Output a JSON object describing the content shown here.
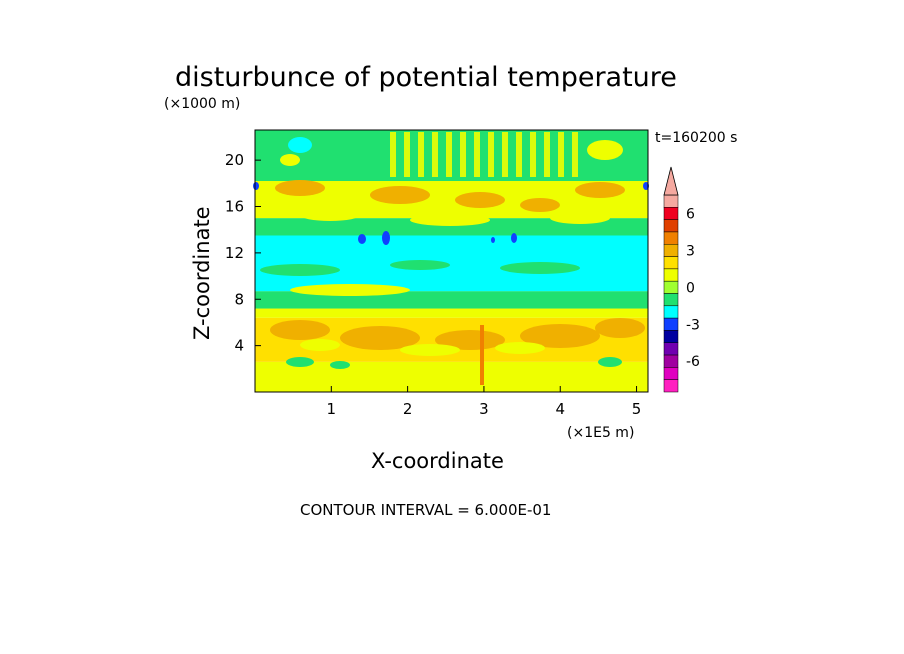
{
  "chart_data": {
    "type": "heatmap",
    "title": "disturbunce of potential temperature",
    "xlabel": "X-coordinate",
    "ylabel": "Z-coordinate",
    "x_unit_label": "(×1E5 m)",
    "y_unit_label": "(×1000 m)",
    "time_label": "t=160200 s",
    "contour_interval_label": "CONTOUR INTERVAL = 6.000E-01",
    "xlim": [
      0,
      5.15
    ],
    "ylim": [
      0,
      22.6
    ],
    "x_ticks": [
      1,
      2,
      3,
      4,
      5
    ],
    "y_ticks": [
      4,
      8,
      12,
      16,
      20
    ],
    "grid": false,
    "colorbar": {
      "tick_labels": [
        "6",
        "3",
        "0",
        "-3",
        "-6"
      ],
      "tick_values": [
        6,
        3,
        0,
        -3,
        -6
      ],
      "levels": [
        9,
        8,
        7,
        6,
        5,
        4,
        3,
        2,
        1,
        0,
        -1,
        -2,
        -3,
        -4,
        -5,
        -6,
        -7,
        -8
      ],
      "colors": [
        "#f5a9a0",
        "#f5a9a0",
        "#f5a9a0",
        "#f00020",
        "#e04000",
        "#f08000",
        "#f0b000",
        "#ffe000",
        "#eeff00",
        "#a0ff30",
        "#20e070",
        "#00ffff",
        "#1040ff",
        "#0000a0",
        "#7000b0",
        "#a000a0",
        "#e000c0",
        "#ff20c0"
      ]
    },
    "bands": [
      {
        "z": [
          0,
          2.6
        ],
        "level": "yellow"
      },
      {
        "z": [
          2.6,
          6.4
        ],
        "level": "orange-light"
      },
      {
        "z": [
          6.4,
          7.2
        ],
        "level": "yellow"
      },
      {
        "z": [
          7.2,
          8.7
        ],
        "level": "green"
      },
      {
        "z": [
          8.7,
          13.5
        ],
        "level": "cyan"
      },
      {
        "z": [
          13.5,
          15.0
        ],
        "level": "green"
      },
      {
        "z": [
          15.0,
          18.2
        ],
        "level": "yellow"
      },
      {
        "z": [
          18.2,
          22.6
        ],
        "level": "green-top"
      }
    ]
  }
}
